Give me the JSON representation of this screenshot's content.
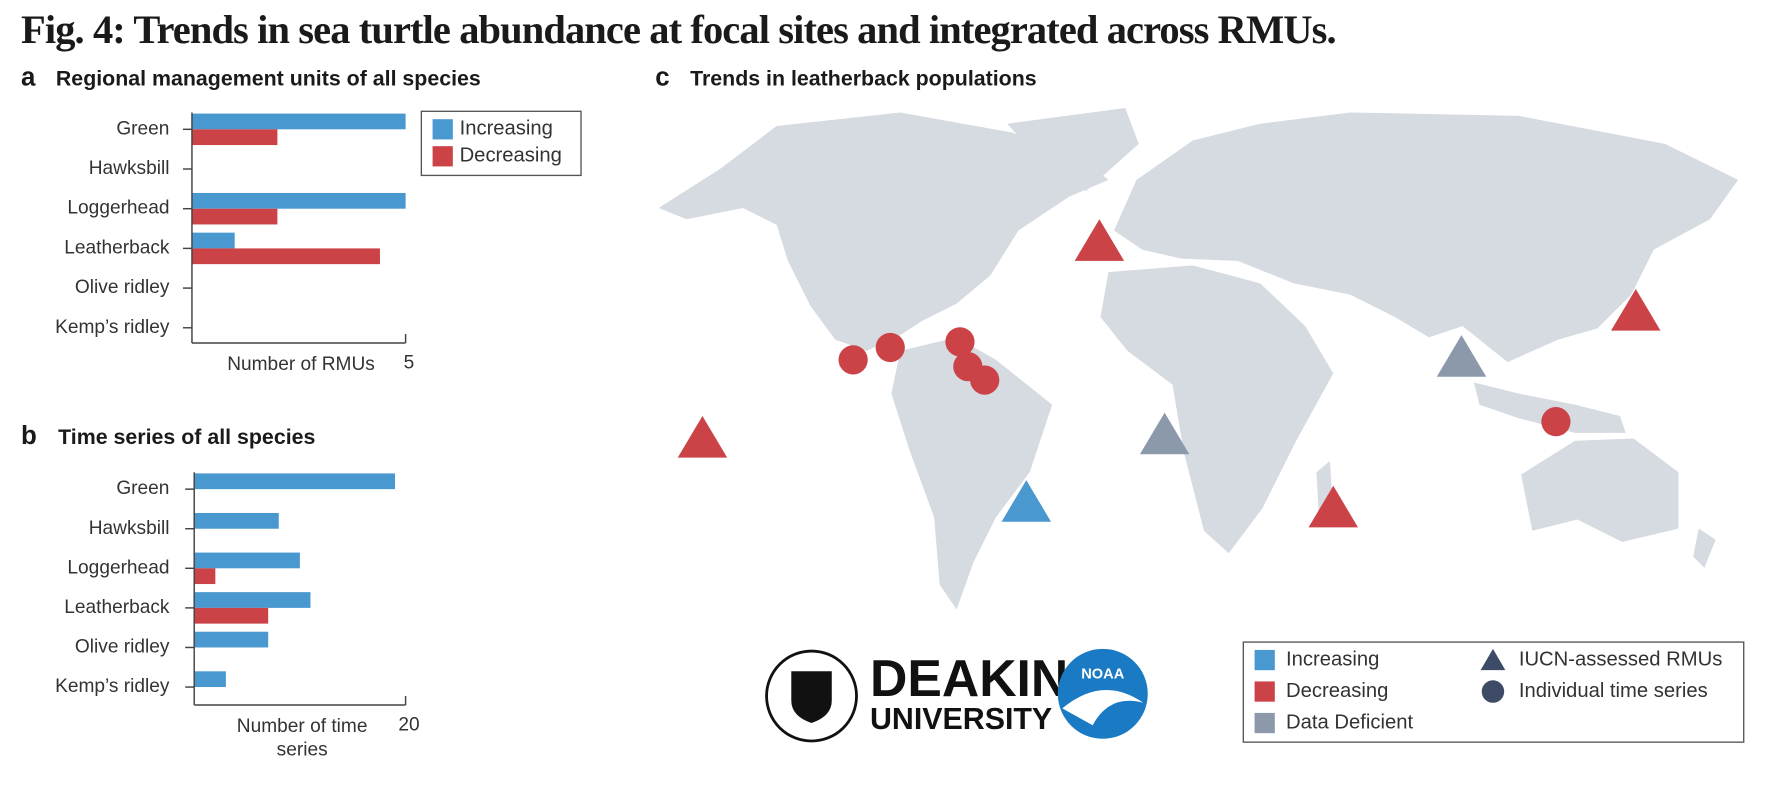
{
  "figure_title": "Fig. 4: Trends in sea turtle abundance at focal sites and integrated across RMUs.",
  "chart_data": [
    {
      "type": "bar",
      "orientation": "horizontal",
      "panel": "a",
      "title": "Regional management units of all species",
      "categories": [
        "Green",
        "Hawksbill",
        "Loggerhead",
        "Leatherback",
        "Olive ridley",
        "Kemp’s ridley"
      ],
      "series": [
        {
          "name": "Increasing",
          "color": "#4a98d0",
          "values": [
            5,
            0,
            5,
            1,
            0,
            0
          ]
        },
        {
          "name": "Decreasing",
          "color": "#cc4347",
          "values": [
            2,
            0,
            2,
            4.4,
            0,
            0
          ]
        }
      ],
      "xlabel": "Number of RMUs",
      "xlim": [
        0,
        5
      ],
      "xticks": [
        5
      ],
      "legend": "top-right"
    },
    {
      "type": "bar",
      "orientation": "horizontal",
      "panel": "b",
      "title": "Time series of all species",
      "categories": [
        "Green",
        "Hawksbill",
        "Loggerhead",
        "Leatherback",
        "Olive ridley",
        "Kemp’s ridley"
      ],
      "series": [
        {
          "name": "Increasing",
          "color": "#4a98d0",
          "values": [
            19,
            8,
            10,
            11,
            7,
            3
          ]
        },
        {
          "name": "Decreasing",
          "color": "#cc4347",
          "values": [
            0,
            0,
            2,
            7,
            0,
            0
          ]
        }
      ],
      "xlabel": "Number of time series",
      "xlim": [
        0,
        20
      ],
      "xticks": [
        20
      ],
      "legend": false
    },
    {
      "type": "map",
      "panel": "c",
      "title": "Trends in leatherback populations",
      "legend_colors": [
        {
          "label": "Increasing",
          "color": "#4a98d0"
        },
        {
          "label": "Decreasing",
          "color": "#cc4347"
        },
        {
          "label": "Data Deficient",
          "color": "#8b99ab"
        }
      ],
      "legend_shapes": [
        {
          "label": "IUCN-assessed RMUs",
          "shape": "triangle"
        },
        {
          "label": "Individual time series",
          "shape": "circle"
        }
      ]
    }
  ],
  "logos": {
    "deakin": [
      "DEAKIN",
      "UNIVERSITY"
    ],
    "noaa": "NOAA"
  }
}
